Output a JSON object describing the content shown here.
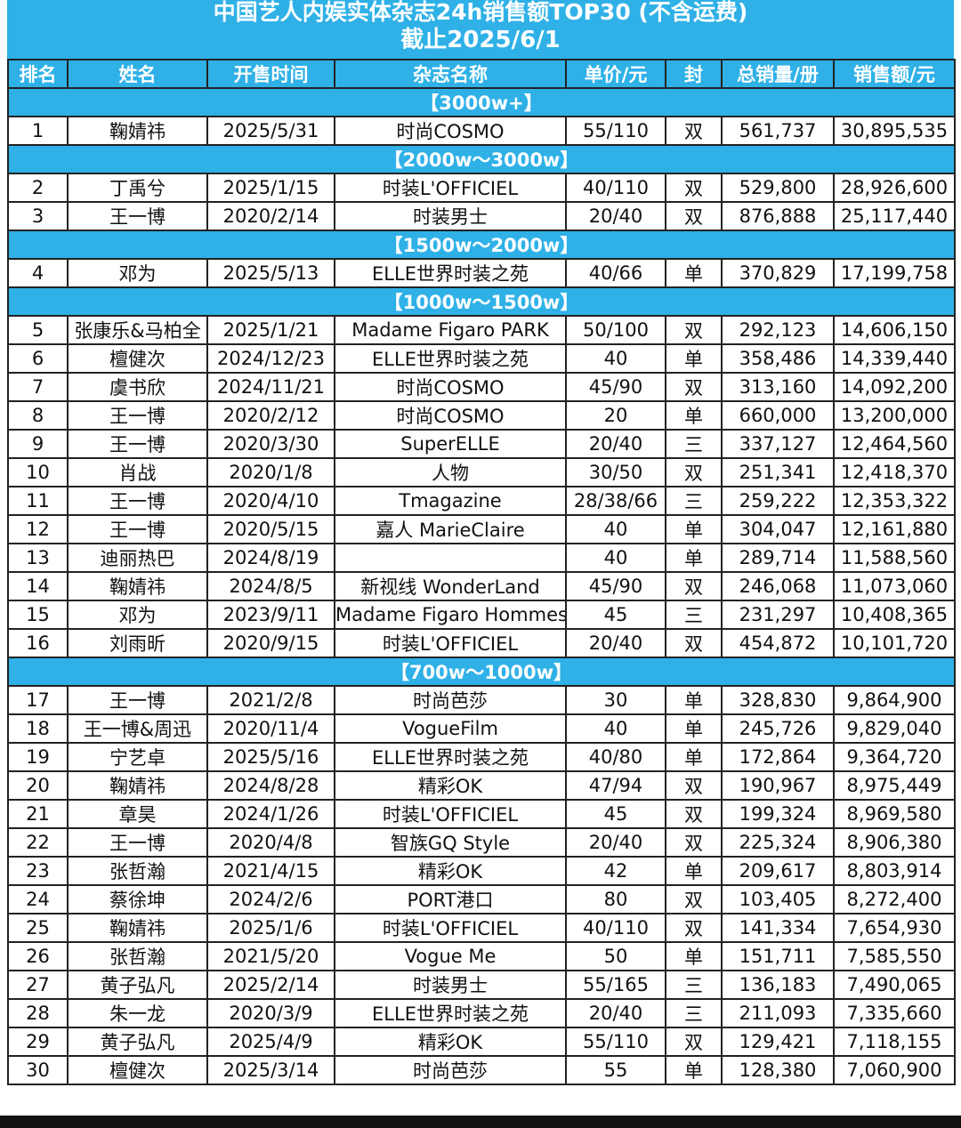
{
  "title": {
    "line1": "中国艺人内娱实体杂志24h销售额TOP30 (不含运费)",
    "line2": "截止2025/6/1"
  },
  "headers": [
    "排名",
    "姓名",
    "开售时间",
    "杂志名称",
    "单价/元",
    "封",
    "总销量/册",
    "销售额/元"
  ],
  "groups": [
    {
      "label": "【3000w+】",
      "rows": [
        [
          "1",
          "鞠婧祎",
          "2025/5/31",
          "时尚COSMO",
          "55/110",
          "双",
          "561,737",
          "30,895,535"
        ]
      ]
    },
    {
      "label": "【2000w～3000w】",
      "rows": [
        [
          "2",
          "丁禹兮",
          "2025/1/15",
          "时装L'OFFICIEL",
          "40/110",
          "双",
          "529,800",
          "28,926,600"
        ],
        [
          "3",
          "王一博",
          "2020/2/14",
          "时装男士",
          "20/40",
          "双",
          "876,888",
          "25,117,440"
        ]
      ]
    },
    {
      "label": "【1500w～2000w】",
      "rows": [
        [
          "4",
          "邓为",
          "2025/5/13",
          "ELLE世界时装之苑",
          "40/66",
          "单",
          "370,829",
          "17,199,758"
        ]
      ]
    },
    {
      "label": "【1000w～1500w】",
      "rows": [
        [
          "5",
          "张康乐&马柏全",
          "2025/1/21",
          "Madame Figaro PARK",
          "50/100",
          "双",
          "292,123",
          "14,606,150"
        ],
        [
          "6",
          "檀健次",
          "2024/12/23",
          "ELLE世界时装之苑",
          "40",
          "单",
          "358,486",
          "14,339,440"
        ],
        [
          "7",
          "虞书欣",
          "2024/11/21",
          "时尚COSMO",
          "45/90",
          "双",
          "313,160",
          "14,092,200"
        ],
        [
          "8",
          "王一博",
          "2020/2/12",
          "时尚COSMO",
          "20",
          "单",
          "660,000",
          "13,200,000"
        ],
        [
          "9",
          "王一博",
          "2020/3/30",
          "SuperELLE",
          "20/40",
          "三",
          "337,127",
          "12,464,560"
        ],
        [
          "10",
          "肖战",
          "2020/1/8",
          "人物",
          "30/50",
          "双",
          "251,341",
          "12,418,370"
        ],
        [
          "11",
          "王一博",
          "2020/4/10",
          "Tmagazine",
          "28/38/66",
          "三",
          "259,222",
          "12,353,322"
        ],
        [
          "12",
          "王一博",
          "2020/5/15",
          "嘉人 MarieClaire",
          "40",
          "单",
          "304,047",
          "12,161,880"
        ],
        [
          "13",
          "迪丽热巴",
          "2024/8/19",
          "",
          "40",
          "单",
          "289,714",
          "11,588,560"
        ],
        [
          "14",
          "鞠婧祎",
          "2024/8/5",
          "新视线 WonderLand",
          "45/90",
          "双",
          "246,068",
          "11,073,060"
        ],
        [
          "15",
          "邓为",
          "2023/9/11",
          "Madame Figaro Hommes",
          "45",
          "三",
          "231,297",
          "10,408,365"
        ],
        [
          "16",
          "刘雨昕",
          "2020/9/15",
          "时装L'OFFICIEL",
          "20/40",
          "双",
          "454,872",
          "10,101,720"
        ]
      ]
    },
    {
      "label": "【700w～1000w】",
      "rows": [
        [
          "17",
          "王一博",
          "2021/2/8",
          "时尚芭莎",
          "30",
          "单",
          "328,830",
          "9,864,900"
        ],
        [
          "18",
          "王一博&周迅",
          "2020/11/4",
          "VogueFilm",
          "40",
          "单",
          "245,726",
          "9,829,040"
        ],
        [
          "19",
          "宁艺卓",
          "2025/5/16",
          "ELLE世界时装之苑",
          "40/80",
          "单",
          "172,864",
          "9,364,720"
        ],
        [
          "20",
          "鞠婧祎",
          "2024/8/28",
          "精彩OK",
          "47/94",
          "双",
          "190,967",
          "8,975,449"
        ],
        [
          "21",
          "章昊",
          "2024/1/26",
          "时装L'OFFICIEL",
          "45",
          "双",
          "199,324",
          "8,969,580"
        ],
        [
          "22",
          "王一博",
          "2020/4/8",
          "智族GQ Style",
          "20/40",
          "双",
          "225,324",
          "8,906,380"
        ],
        [
          "23",
          "张哲瀚",
          "2021/4/15",
          "精彩OK",
          "42",
          "单",
          "209,617",
          "8,803,914"
        ],
        [
          "24",
          "蔡徐坤",
          "2024/2/6",
          "PORT港口",
          "80",
          "双",
          "103,405",
          "8,272,400"
        ],
        [
          "25",
          "鞠婧祎",
          "2025/1/6",
          "时装L'OFFICIEL",
          "40/110",
          "双",
          "141,334",
          "7,654,930"
        ],
        [
          "26",
          "张哲瀚",
          "2021/5/20",
          "Vogue Me",
          "50",
          "单",
          "151,711",
          "7,585,550"
        ],
        [
          "27",
          "黄子弘凡",
          "2025/2/14",
          "时装男士",
          "55/165",
          "三",
          "136,183",
          "7,490,065"
        ],
        [
          "28",
          "朱一龙",
          "2020/3/9",
          "ELLE世界时装之苑",
          "20/40",
          "三",
          "211,093",
          "7,335,660"
        ],
        [
          "29",
          "黄子弘凡",
          "2025/4/9",
          "精彩OK",
          "55/110",
          "双",
          "129,421",
          "7,118,155"
        ],
        [
          "30",
          "檀健次",
          "2025/3/14",
          "时尚芭莎",
          "55",
          "单",
          "128,380",
          "7,060,900"
        ]
      ]
    }
  ],
  "colors": {
    "header_bg": "#2fb1e7",
    "header_text": "#ffffff",
    "border": "#222222"
  }
}
